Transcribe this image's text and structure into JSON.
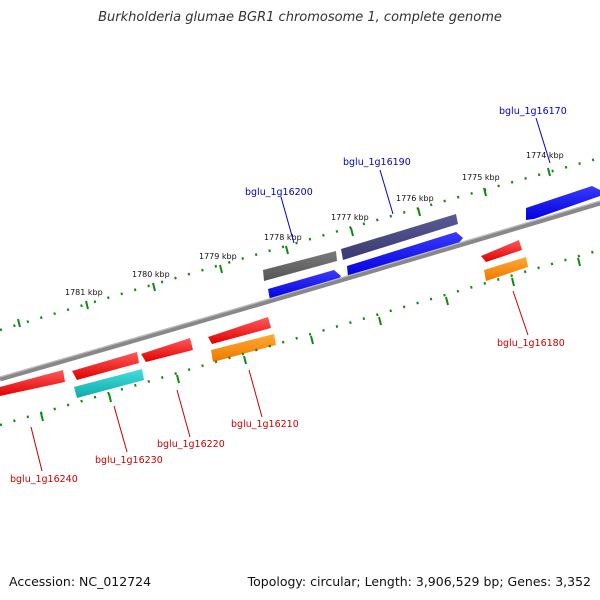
{
  "title": "Burkholderia glumae BGR1 chromosome 1, complete genome",
  "footer": {
    "accession": "Accession: NC_012724",
    "summary": "Topology: circular; Length: 3,906,529 bp; Genes: 3,352"
  },
  "colors": {
    "forward_label": "#0000cc",
    "reverse_label": "#cc0000",
    "backbone": "#777777",
    "ticks": "#118811",
    "red": "#ff0000",
    "blue": "#0000ee",
    "slate": "#474782",
    "gray": "#666666",
    "cyan": "#22cccc",
    "orange": "#ff8c00"
  },
  "kbp_markers": [
    {
      "label": "1774 kbp"
    },
    {
      "label": "1775 kbp"
    },
    {
      "label": "1776 kbp"
    },
    {
      "label": "1777 kbp"
    },
    {
      "label": "1778 kbp"
    },
    {
      "label": "1779 kbp"
    },
    {
      "label": "1780 kbp"
    },
    {
      "label": "1781 kbp"
    }
  ],
  "gene_labels": [
    {
      "name": "bglu_1g16170",
      "strand": "forward"
    },
    {
      "name": "bglu_1g16190",
      "strand": "forward"
    },
    {
      "name": "bglu_1g16200",
      "strand": "forward"
    },
    {
      "name": "bglu_1g16180",
      "strand": "reverse"
    },
    {
      "name": "bglu_1g16210",
      "strand": "reverse"
    },
    {
      "name": "bglu_1g16220",
      "strand": "reverse"
    },
    {
      "name": "bglu_1g16230",
      "strand": "reverse"
    },
    {
      "name": "bglu_1g16240",
      "strand": "reverse"
    }
  ]
}
